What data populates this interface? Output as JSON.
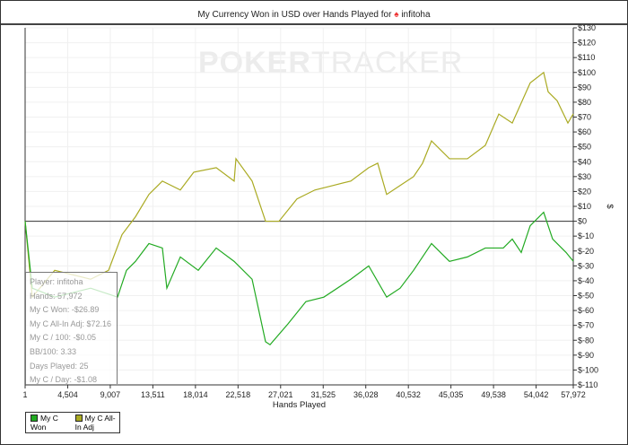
{
  "chart_data": {
    "type": "line",
    "title": "My Currency Won in USD over Hands Played for",
    "player": "infitoha",
    "xlabel": "Hands Played",
    "ylabel": "$",
    "xlim": [
      1,
      57972
    ],
    "ylim": [
      -110,
      130
    ],
    "x_ticks": [
      "1",
      "4,504",
      "9,007",
      "13,511",
      "18,014",
      "22,518",
      "27,021",
      "31,525",
      "36,028",
      "40,532",
      "45,035",
      "49,538",
      "54,042",
      "57,972"
    ],
    "x_tick_values": [
      1,
      4504,
      9007,
      13511,
      18014,
      22518,
      27021,
      31525,
      36028,
      40532,
      45035,
      49538,
      54042,
      57972
    ],
    "y_ticks": [
      "$130",
      "$120",
      "$110",
      "$100",
      "$90",
      "$80",
      "$70",
      "$60",
      "$50",
      "$40",
      "$30",
      "$20",
      "$10",
      "$0",
      "$-10",
      "$-20",
      "$-30",
      "$-40",
      "$-50",
      "$-60",
      "$-70",
      "$-80",
      "$-90",
      "$-100",
      "$-110"
    ],
    "grid": true,
    "legend_placement": "bottom-left",
    "series": [
      {
        "name": "My C Won",
        "color": "#22aa22",
        "points": [
          [
            1,
            0
          ],
          [
            760,
            -45
          ],
          [
            3132,
            -51
          ],
          [
            6927,
            -45
          ],
          [
            9774,
            -51
          ],
          [
            10723,
            -33
          ],
          [
            11671,
            -27
          ],
          [
            13094,
            -15
          ],
          [
            14517,
            -18
          ],
          [
            14991,
            -45
          ],
          [
            16415,
            -24
          ],
          [
            18312,
            -33
          ],
          [
            20210,
            -18
          ],
          [
            22107,
            -27
          ],
          [
            24005,
            -39
          ],
          [
            25428,
            -81
          ],
          [
            25902,
            -83
          ],
          [
            27800,
            -69
          ],
          [
            29697,
            -54
          ],
          [
            31595,
            -51
          ],
          [
            34441,
            -39
          ],
          [
            36339,
            -30
          ],
          [
            38236,
            -51
          ],
          [
            39660,
            -45
          ],
          [
            41083,
            -33
          ],
          [
            42980,
            -15
          ],
          [
            44878,
            -27
          ],
          [
            46775,
            -24
          ],
          [
            48673,
            -18
          ],
          [
            50570,
            -18
          ],
          [
            51519,
            -12
          ],
          [
            52468,
            -21
          ],
          [
            53417,
            -3
          ],
          [
            54840,
            6
          ],
          [
            55788,
            -12
          ],
          [
            57212,
            -21
          ],
          [
            57972,
            -26.89
          ]
        ]
      },
      {
        "name": "My C All-In Adj",
        "color": "#aaaa22",
        "points": [
          [
            1,
            0
          ],
          [
            760,
            -51
          ],
          [
            3132,
            -33
          ],
          [
            6927,
            -39
          ],
          [
            8825,
            -33
          ],
          [
            10248,
            -9
          ],
          [
            11671,
            3
          ],
          [
            13094,
            18
          ],
          [
            14043,
            24
          ],
          [
            14517,
            27
          ],
          [
            16415,
            21
          ],
          [
            17838,
            33
          ],
          [
            20210,
            36
          ],
          [
            22107,
            27
          ],
          [
            22297,
            42
          ],
          [
            24005,
            27
          ],
          [
            25428,
            0
          ],
          [
            26851,
            0
          ],
          [
            28749,
            15
          ],
          [
            30646,
            21
          ],
          [
            32544,
            24
          ],
          [
            34441,
            27
          ],
          [
            36339,
            36
          ],
          [
            37288,
            39
          ],
          [
            38236,
            18
          ],
          [
            39660,
            24
          ],
          [
            41083,
            30
          ],
          [
            42031,
            39
          ],
          [
            42980,
            54
          ],
          [
            44878,
            42
          ],
          [
            46775,
            42
          ],
          [
            48673,
            51
          ],
          [
            50096,
            72
          ],
          [
            51519,
            66
          ],
          [
            53417,
            93
          ],
          [
            54840,
            100
          ],
          [
            55314,
            87
          ],
          [
            56263,
            81
          ],
          [
            57402,
            66
          ],
          [
            57972,
            72.16
          ]
        ]
      }
    ]
  },
  "tooltip": {
    "lines": [
      "Player: infitoha",
      "Hands: 57,972",
      "My C Won: -$26.89",
      "My C All-In Adj: $72.16",
      "My C / 100: -$0.05",
      "BB/100: 3.33",
      "Days Played: 25",
      "My C / Day: -$1.08"
    ]
  },
  "watermark": "POKERTRACKER"
}
